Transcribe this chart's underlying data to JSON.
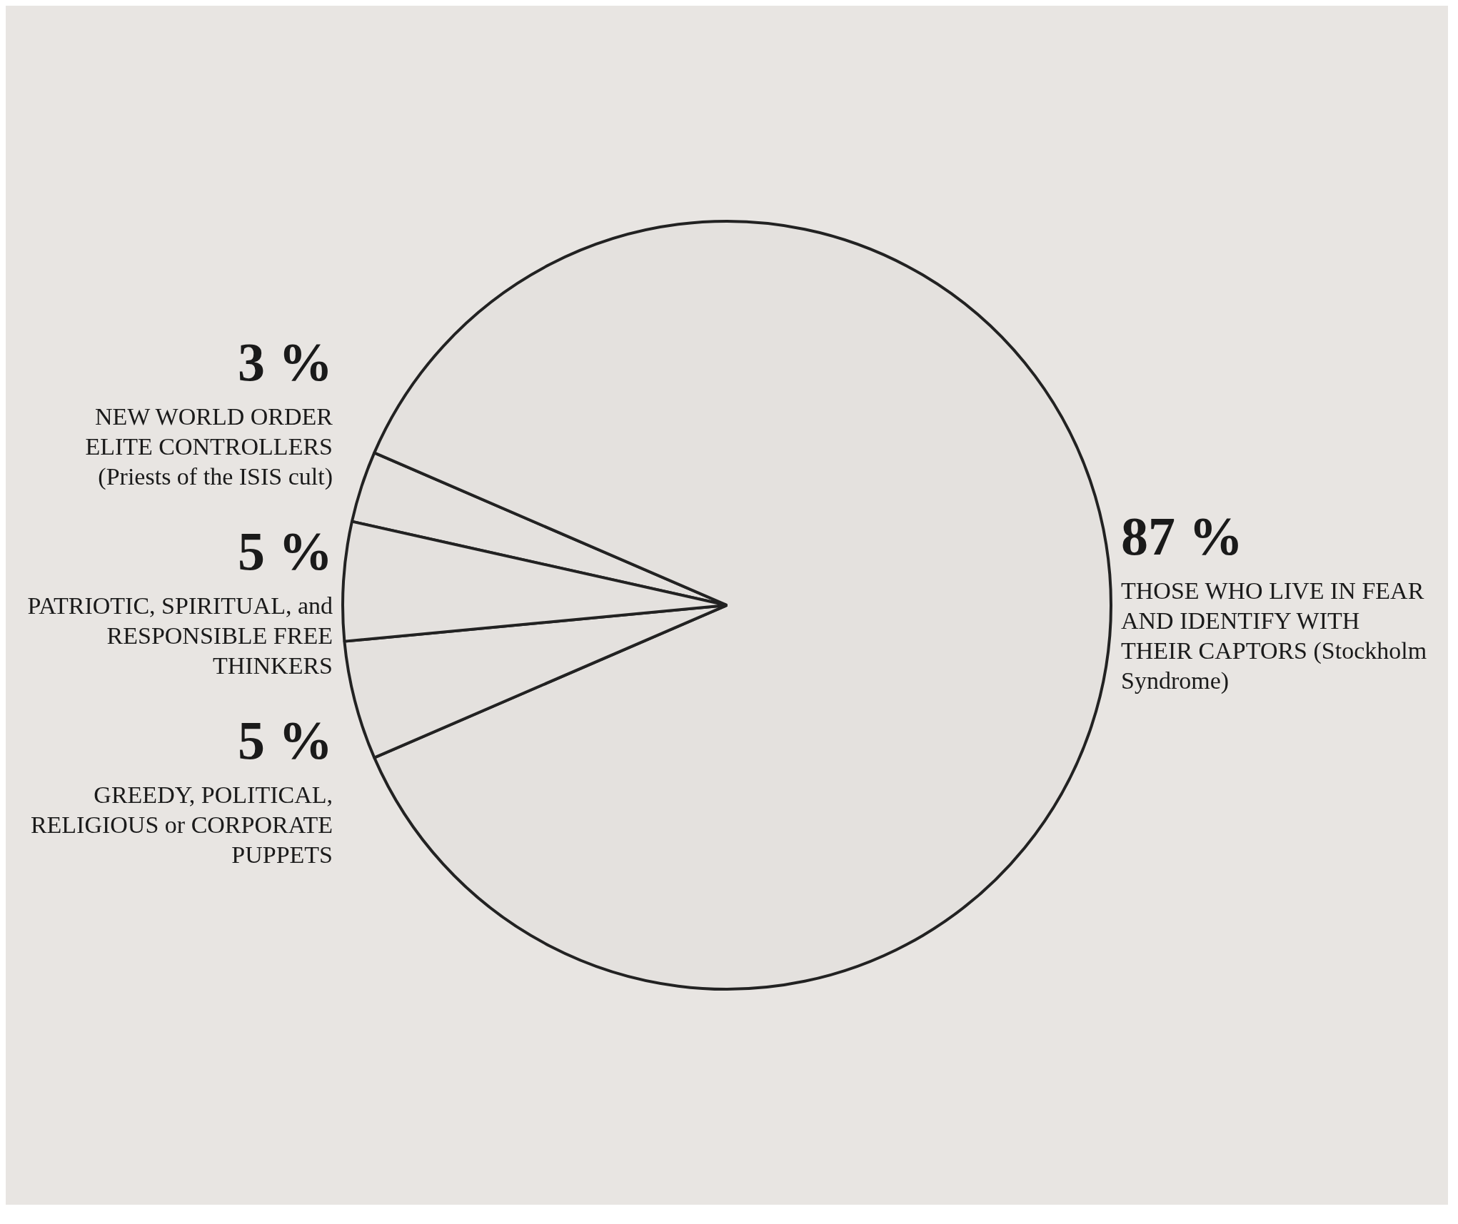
{
  "chart_data": {
    "type": "pie",
    "categories": [
      "NEW WORLD ORDER ELITE CONTROLLERS (Priests of the ISIS cult)",
      "THOSE WHO LIVE IN FEAR AND IDENTIFY WITH THEIR CAPTORS (Stockholm Syndrome)",
      "GREEDY, POLITICAL, RELIGIOUS or CORPORATE PUPPETS",
      "PATRIOTIC, SPIRITUAL, and RESPONSIBLE FREE THINKERS"
    ],
    "values": [
      3,
      87,
      5,
      5
    ],
    "value_labels": [
      "3 %",
      "87 %",
      "5 %",
      "5 %"
    ],
    "colors": [
      "#e4e1de",
      "#e4e1de",
      "#e4e1de",
      "#e4e1de"
    ]
  }
}
